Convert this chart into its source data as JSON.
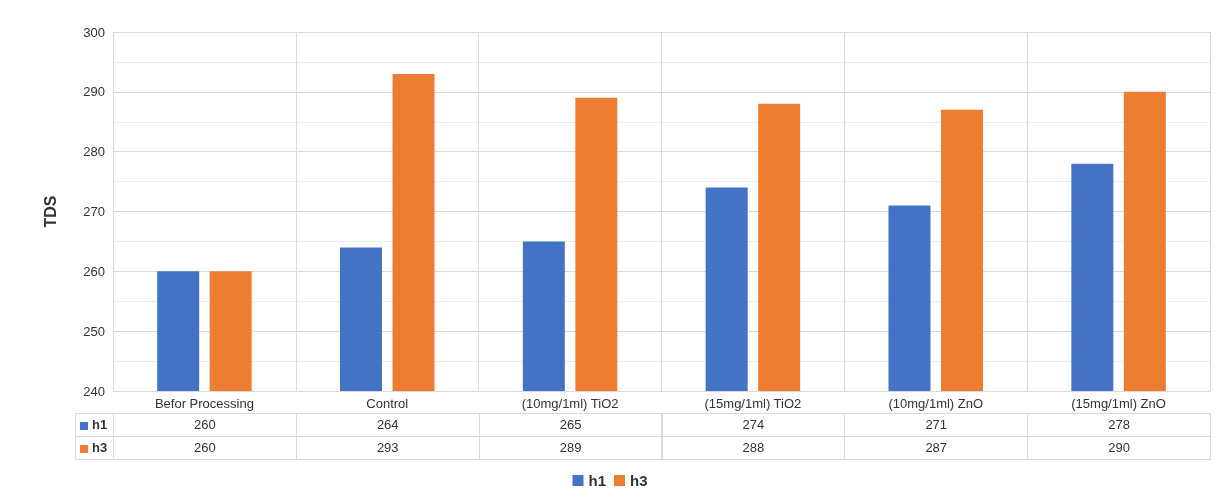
{
  "chart_data": {
    "type": "bar",
    "ylabel": "TDS",
    "categories": [
      "Befor Processing",
      "Control",
      "(10mg/1ml) TiO2",
      "(15mg/1ml) TiO2",
      "(10mg/1ml) ZnO",
      "(15mg/1ml) ZnO"
    ],
    "series": [
      {
        "name": "h1",
        "color": "#4472c4",
        "values": [
          260,
          264,
          265,
          274,
          271,
          278
        ]
      },
      {
        "name": "h3",
        "color": "#ed7d31",
        "values": [
          260,
          293,
          289,
          288,
          287,
          290
        ]
      }
    ],
    "ylim": [
      240,
      300
    ],
    "yticks": [
      240,
      250,
      260,
      270,
      280,
      290,
      300
    ],
    "grid": true,
    "legend": "bottom",
    "data_labels": true
  }
}
